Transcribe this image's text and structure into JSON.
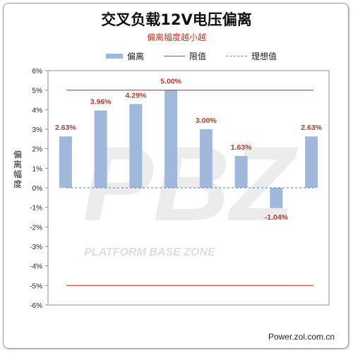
{
  "chart_data": {
    "type": "bar",
    "title": "交叉负载12V电压偏离",
    "subtitle": "偏离幅度越小越",
    "ylabel": "偏离幅度",
    "categories": [
      "",
      "",
      "",
      "",
      "",
      "",
      "",
      ""
    ],
    "series": [
      {
        "name": "偏离",
        "values": [
          2.63,
          3.96,
          4.29,
          5.0,
          3.0,
          1.63,
          -1.04,
          2.63
        ]
      }
    ],
    "data_labels": [
      "2.63%",
      "3.96%",
      "4.29%",
      "5.00%",
      "3.00%",
      "1.63%",
      "-1.04%",
      "2.63%"
    ],
    "limit_lines": {
      "name": "限值",
      "values": [
        5,
        -5
      ]
    },
    "ideal_line": {
      "name": "理想值",
      "value": 0
    },
    "ylim": [
      -6,
      6
    ],
    "yticks": [
      "6%",
      "5%",
      "4%",
      "3%",
      "2%",
      "1%",
      "0%",
      "-1%",
      "-2%",
      "-3%",
      "-4%",
      "-5%",
      "-6%"
    ],
    "legend_position": "top",
    "grid": false,
    "colors": {
      "bar": "#9fb8dc",
      "limit": "#d23b3b",
      "ideal": "#5b7ea3",
      "label": "#b23a2f"
    }
  },
  "watermark": {
    "text": "PLATFORM BASE ZONE",
    "mark": "PBZ"
  },
  "footer": "Power.zol.com.cn"
}
